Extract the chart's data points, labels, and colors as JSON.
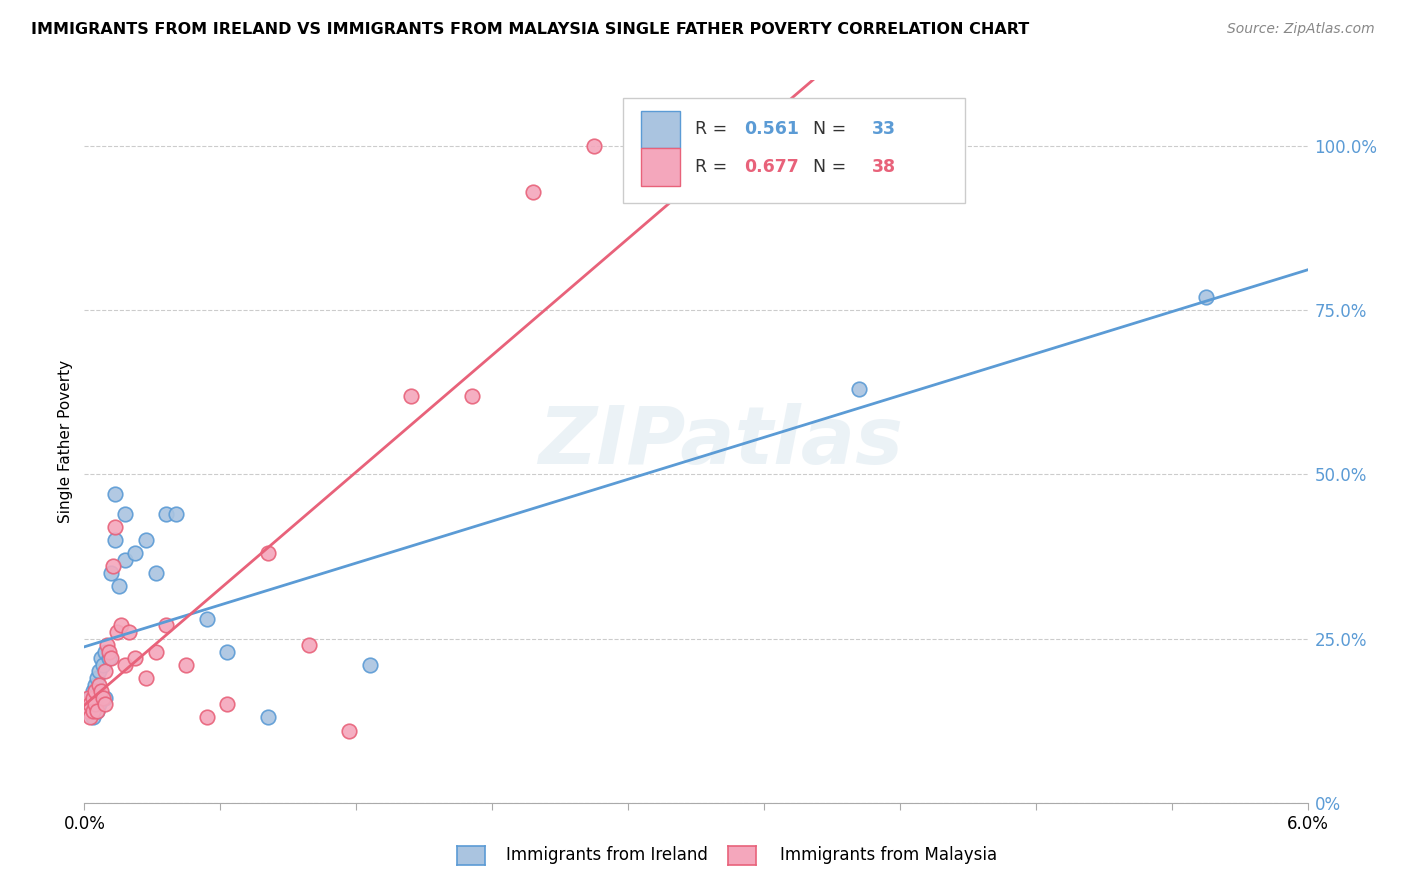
{
  "title": "IMMIGRANTS FROM IRELAND VS IMMIGRANTS FROM MALAYSIA SINGLE FATHER POVERTY CORRELATION CHART",
  "source": "Source: ZipAtlas.com",
  "ylabel": "Single Father Poverty",
  "ytick_vals": [
    0.0,
    0.25,
    0.5,
    0.75,
    1.0
  ],
  "ytick_labels": [
    "0%",
    "25.0%",
    "50.0%",
    "75.0%",
    "100.0%"
  ],
  "xlim": [
    0.0,
    0.06
  ],
  "ylim": [
    0.0,
    1.1
  ],
  "legend_ireland_R": "0.561",
  "legend_ireland_N": "33",
  "legend_malaysia_R": "0.677",
  "legend_malaysia_N": "38",
  "color_ireland": "#aac4e0",
  "color_malaysia": "#f4a7bc",
  "color_ireland_line": "#5b9bd5",
  "color_malaysia_line": "#e8627a",
  "watermark": "ZIPatlas",
  "ireland_x": [
    0.0002,
    0.0003,
    0.0003,
    0.0004,
    0.0004,
    0.0005,
    0.0005,
    0.0006,
    0.0006,
    0.0007,
    0.0007,
    0.0008,
    0.0009,
    0.001,
    0.001,
    0.0012,
    0.0013,
    0.0015,
    0.0015,
    0.0017,
    0.002,
    0.002,
    0.0025,
    0.003,
    0.0035,
    0.004,
    0.0045,
    0.006,
    0.007,
    0.009,
    0.014,
    0.038,
    0.055
  ],
  "ireland_y": [
    0.14,
    0.16,
    0.15,
    0.17,
    0.13,
    0.18,
    0.16,
    0.19,
    0.14,
    0.2,
    0.15,
    0.22,
    0.21,
    0.23,
    0.16,
    0.22,
    0.35,
    0.4,
    0.47,
    0.33,
    0.37,
    0.44,
    0.38,
    0.4,
    0.35,
    0.44,
    0.44,
    0.28,
    0.23,
    0.13,
    0.21,
    0.63,
    0.77
  ],
  "malaysia_x": [
    0.0001,
    0.0002,
    0.0002,
    0.0003,
    0.0003,
    0.0004,
    0.0004,
    0.0005,
    0.0005,
    0.0006,
    0.0007,
    0.0008,
    0.0009,
    0.001,
    0.001,
    0.0011,
    0.0012,
    0.0013,
    0.0014,
    0.0015,
    0.0016,
    0.0018,
    0.002,
    0.0022,
    0.0025,
    0.003,
    0.0035,
    0.004,
    0.005,
    0.006,
    0.007,
    0.009,
    0.011,
    0.013,
    0.016,
    0.019,
    0.022,
    0.025
  ],
  "malaysia_y": [
    0.15,
    0.14,
    0.16,
    0.15,
    0.13,
    0.16,
    0.14,
    0.17,
    0.15,
    0.14,
    0.18,
    0.17,
    0.16,
    0.2,
    0.15,
    0.24,
    0.23,
    0.22,
    0.36,
    0.42,
    0.26,
    0.27,
    0.21,
    0.26,
    0.22,
    0.19,
    0.23,
    0.27,
    0.21,
    0.13,
    0.15,
    0.38,
    0.24,
    0.11,
    0.62,
    0.62,
    0.93,
    1.0
  ]
}
